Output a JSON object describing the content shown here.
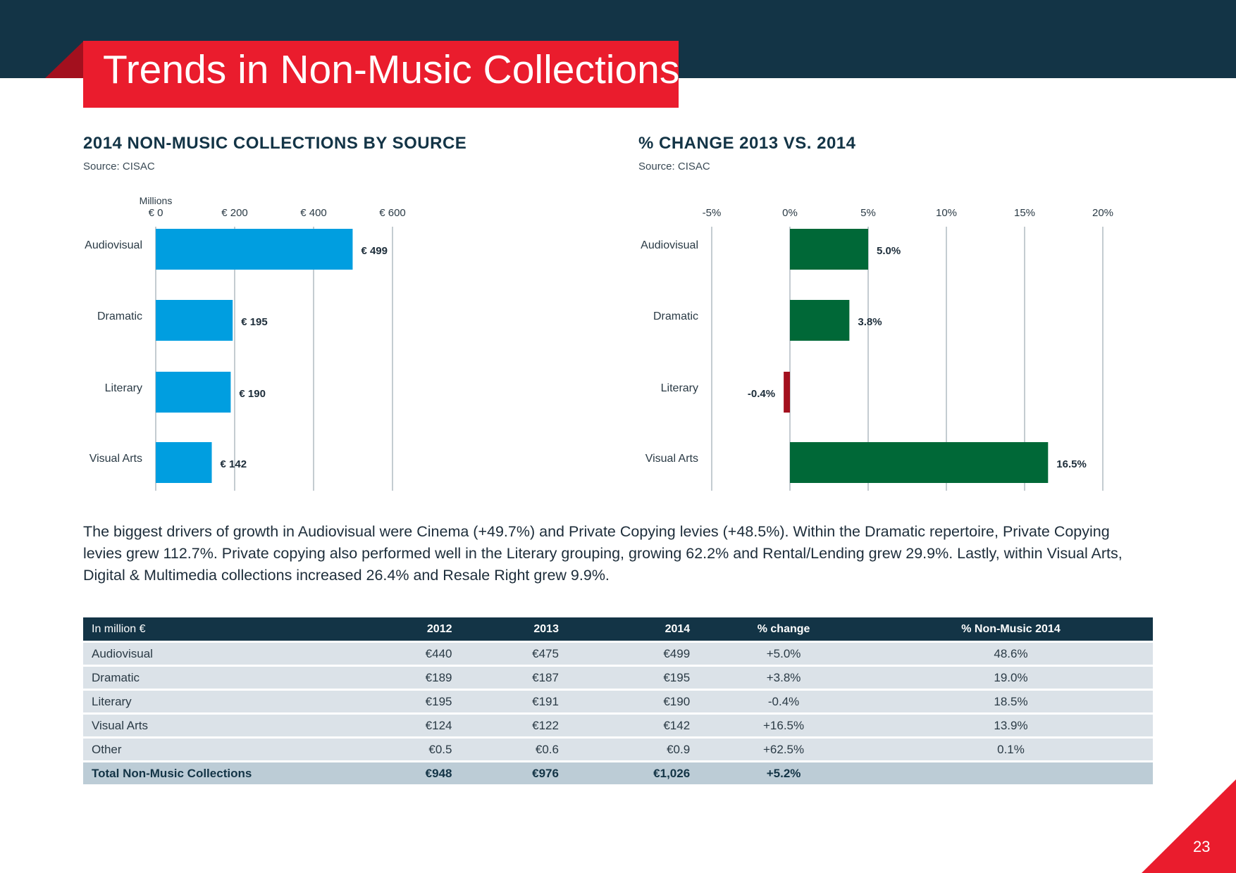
{
  "page": {
    "title": "Trends in Non-Music Collections",
    "page_number": "23"
  },
  "colors": {
    "header_band": "#133446",
    "accent_red": "#ea1c2d",
    "bar_blue": "#009ee0",
    "bar_green": "#006837",
    "bar_negative": "#a3101e",
    "table_row": "#dbe2e8",
    "table_total": "#bcccd6"
  },
  "left_section": {
    "title": "2014 NON-MUSIC COLLECTIONS BY SOURCE",
    "source": "Source: CISAC"
  },
  "right_section": {
    "title": "% CHANGE 2013 VS. 2014",
    "source": "Source: CISAC"
  },
  "body_text": "The biggest drivers of growth in Audiovisual were Cinema (+49.7%) and Private Copying levies (+48.5%). Within the Dramatic repertoire, Private Copying levies grew 112.7%. Private copying also performed well in the Literary grouping, growing 62.2% and Rental/Lending grew 29.9%. Lastly, within Visual Arts, Digital & Multimedia collections increased 26.4% and Resale Right grew 9.9%.",
  "chart_data": [
    {
      "type": "bar",
      "orientation": "horizontal",
      "title": "2014 NON-MUSIC COLLECTIONS BY SOURCE",
      "axis_label": "Millions",
      "categories": [
        "Audiovisual",
        "Dramatic",
        "Literary",
        "Visual Arts"
      ],
      "values": [
        499,
        195,
        190,
        142
      ],
      "value_labels": [
        "€ 499",
        "€ 195",
        "€ 190",
        "€ 142"
      ],
      "xlim": [
        0,
        600
      ],
      "ticks": [
        0,
        200,
        400,
        600
      ],
      "tick_labels": [
        "€ 0",
        "€ 200",
        "€ 400",
        "€ 600"
      ],
      "grid": true
    },
    {
      "type": "bar",
      "orientation": "horizontal",
      "title": "% CHANGE 2013 VS. 2014",
      "categories": [
        "Audiovisual",
        "Dramatic",
        "Literary",
        "Visual Arts"
      ],
      "values": [
        5.0,
        3.8,
        -0.4,
        16.5
      ],
      "value_labels": [
        "5.0%",
        "3.8%",
        "-0.4%",
        "16.5%"
      ],
      "xlim": [
        -5,
        20
      ],
      "ticks": [
        -5,
        0,
        5,
        10,
        15,
        20
      ],
      "tick_labels": [
        "-5%",
        "0%",
        "5%",
        "10%",
        "15%",
        "20%"
      ],
      "grid": true
    }
  ],
  "table": {
    "headers": [
      "In million €",
      "2012",
      "2013",
      "2014",
      "% change",
      "% Non-Music 2014"
    ],
    "rows": [
      [
        "Audiovisual",
        "€440",
        "€475",
        "€499",
        "+5.0%",
        "48.6%"
      ],
      [
        "Dramatic",
        "€189",
        "€187",
        "€195",
        "+3.8%",
        "19.0%"
      ],
      [
        "Literary",
        "€195",
        "€191",
        "€190",
        "-0.4%",
        "18.5%"
      ],
      [
        "Visual Arts",
        "€124",
        "€122",
        "€142",
        "+16.5%",
        "13.9%"
      ],
      [
        "Other",
        "€0.5",
        "€0.6",
        "€0.9",
        "+62.5%",
        "0.1%"
      ]
    ],
    "total": [
      "Total Non-Music Collections",
      "€948",
      "€976",
      "€1,026",
      "+5.2%",
      ""
    ]
  }
}
